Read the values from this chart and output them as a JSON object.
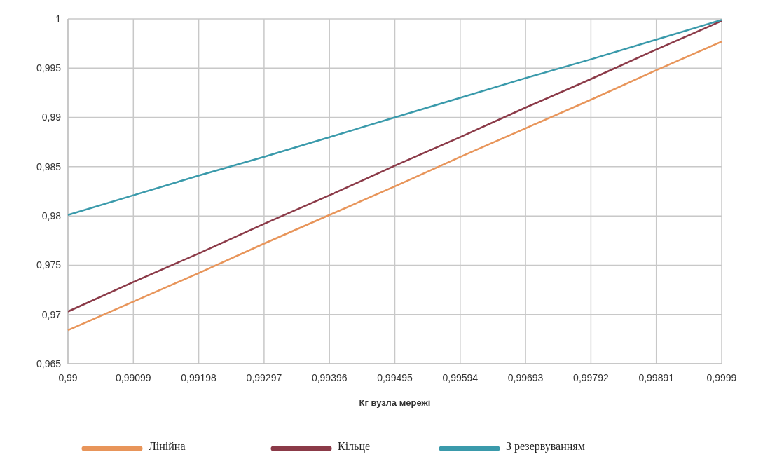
{
  "chart_data": {
    "type": "line",
    "xlabel": "Кг вузла мережі",
    "x": [
      0.99,
      0.99099,
      0.99198,
      0.99297,
      0.99396,
      0.99495,
      0.99594,
      0.99693,
      0.99792,
      0.99891,
      0.9999
    ],
    "series": [
      {
        "name": "Лінійна",
        "color": "#e8955a",
        "values": [
          0.9684,
          0.9713,
          0.9742,
          0.9772,
          0.9801,
          0.983,
          0.986,
          0.9889,
          0.9918,
          0.9948,
          0.9977
        ]
      },
      {
        "name": "Кільце",
        "color": "#8b3a48",
        "values": [
          0.9703,
          0.9733,
          0.9762,
          0.9792,
          0.9821,
          0.9851,
          0.988,
          0.991,
          0.9939,
          0.9969,
          0.9998
        ]
      },
      {
        "name": "З резервуванням",
        "color": "#3a9aab",
        "values": [
          0.9801,
          0.9821,
          0.9841,
          0.986,
          0.988,
          0.99,
          0.992,
          0.994,
          0.9959,
          0.9979,
          0.9999
        ]
      }
    ],
    "xlim": [
      0.99,
      0.9999
    ],
    "xticks": [
      {
        "value": 0.99,
        "label": "0,99"
      },
      {
        "value": 0.99099,
        "label": "0,99099"
      },
      {
        "value": 0.99198,
        "label": "0,99198"
      },
      {
        "value": 0.99297,
        "label": "0,99297"
      },
      {
        "value": 0.99396,
        "label": "0,99396"
      },
      {
        "value": 0.99495,
        "label": "0,99495"
      },
      {
        "value": 0.99594,
        "label": "0,99594"
      },
      {
        "value": 0.99693,
        "label": "0,99693"
      },
      {
        "value": 0.99792,
        "label": "0,99792"
      },
      {
        "value": 0.99891,
        "label": "0,99891"
      },
      {
        "value": 0.9999,
        "label": "0,9999"
      }
    ],
    "ylim": [
      0.965,
      1
    ],
    "yticks": [
      {
        "value": 0.965,
        "label": "0,965"
      },
      {
        "value": 0.97,
        "label": "0,97"
      },
      {
        "value": 0.975,
        "label": "0,975"
      },
      {
        "value": 0.98,
        "label": "0,98"
      },
      {
        "value": 0.985,
        "label": "0,985"
      },
      {
        "value": 0.99,
        "label": "0,99"
      },
      {
        "value": 0.995,
        "label": "0,995"
      },
      1
    ],
    "grid": true,
    "legend": "bottom",
    "marker": "none",
    "line_style": "solid"
  }
}
